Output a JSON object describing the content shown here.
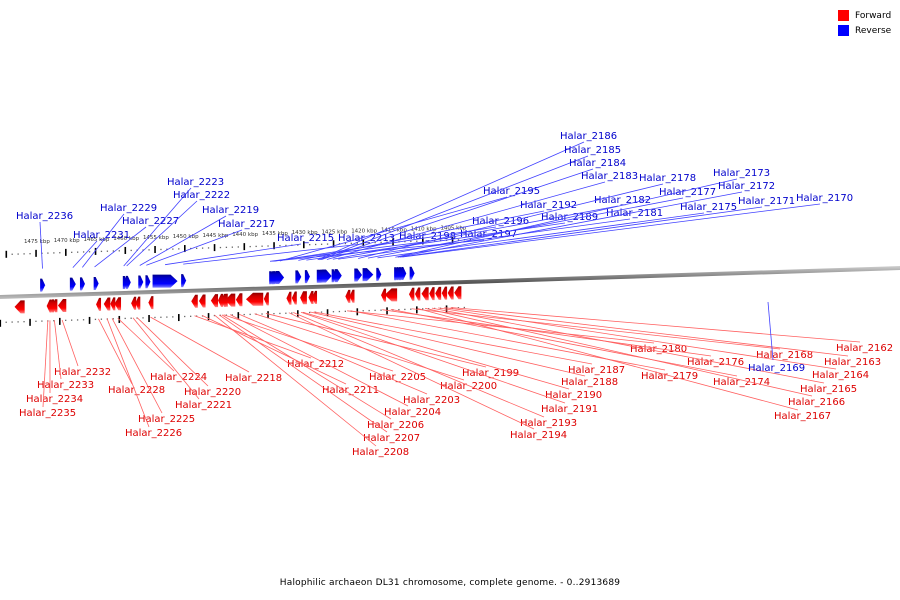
{
  "legend": {
    "items": [
      {
        "label": "Forward",
        "color": "#ff0000"
      },
      {
        "label": "Reverse",
        "color": "#0000ff"
      }
    ]
  },
  "caption": "Halophilic archaeon DL31 chromosome, complete genome. - 0..2913689",
  "chart_data": {
    "type": "genome-map",
    "sequence": "Halophilic archaeon DL31 chromosome, complete genome.",
    "range_bp": [
      0,
      2913689
    ],
    "axis_unit": "kbp",
    "axis_ticks_kbp": [
      1475,
      1470,
      1465,
      1460,
      1455,
      1450,
      1445,
      1440,
      1435,
      1430,
      1425,
      1420,
      1415,
      1410,
      1405
    ],
    "strand_colors": {
      "forward": "#ff0000",
      "reverse": "#0000ff"
    },
    "reverse_genes": [
      {
        "id": "Halar_2236",
        "start_kbp": 1474.3,
        "end_kbp": 1473.5
      },
      {
        "id": "Halar_2231",
        "start_kbp": 1469.3,
        "end_kbp": 1468.3
      },
      {
        "id": "Halar_2229",
        "start_kbp": 1467.6,
        "end_kbp": 1466.8
      },
      {
        "id": "Halar_2227",
        "start_kbp": 1465.3,
        "end_kbp": 1465.0
      },
      {
        "id": "Halar_2223",
        "start_kbp": 1460.4,
        "end_kbp": 1460.1
      },
      {
        "id": "Halar_2222",
        "start_kbp": 1459.9,
        "end_kbp": 1459.6
      },
      {
        "id": "Halar_2219",
        "start_kbp": 1457.8,
        "end_kbp": 1457.3
      },
      {
        "id": "Halar_2217",
        "start_kbp": 1456.6,
        "end_kbp": 1456.3
      },
      {
        "id": "Halar_2215",
        "start_kbp": 1455.4,
        "end_kbp": 1451.2
      },
      {
        "id": "Halar_2213",
        "start_kbp": 1450.6,
        "end_kbp": 1449.9
      },
      {
        "id": "Halar_2198",
        "start_kbp": 1435.8,
        "end_kbp": 1435.5
      },
      {
        "id": "Halar_2197",
        "start_kbp": 1435.4,
        "end_kbp": 1435.1
      },
      {
        "id": "Halar_2196",
        "start_kbp": 1435.1,
        "end_kbp": 1434.8
      },
      {
        "id": "Halar_2195",
        "start_kbp": 1434.7,
        "end_kbp": 1433.3
      },
      {
        "id": "Halar_2192",
        "start_kbp": 1431.4,
        "end_kbp": 1430.4
      },
      {
        "id": "Halar_2189",
        "start_kbp": 1429.8,
        "end_kbp": 1429.3
      },
      {
        "id": "Halar_2186",
        "start_kbp": 1427.8,
        "end_kbp": 1427.5
      },
      {
        "id": "Halar_2185",
        "start_kbp": 1427.5,
        "end_kbp": 1427.2
      },
      {
        "id": "Halar_2184",
        "start_kbp": 1427.2,
        "end_kbp": 1426.9
      },
      {
        "id": "Halar_2183",
        "start_kbp": 1426.9,
        "end_kbp": 1425.3
      },
      {
        "id": "Halar_2182",
        "start_kbp": 1425.3,
        "end_kbp": 1424.9
      },
      {
        "id": "Halar_2181",
        "start_kbp": 1424.8,
        "end_kbp": 1423.6
      },
      {
        "id": "Halar_2178",
        "start_kbp": 1421.5,
        "end_kbp": 1420.2
      },
      {
        "id": "Halar_2177",
        "start_kbp": 1420.1,
        "end_kbp": 1418.3
      },
      {
        "id": "Halar_2175",
        "start_kbp": 1417.8,
        "end_kbp": 1417.4
      },
      {
        "id": "Halar_2173",
        "start_kbp": 1414.8,
        "end_kbp": 1414.4
      },
      {
        "id": "Halar_2172",
        "start_kbp": 1414.4,
        "end_kbp": 1414.0
      },
      {
        "id": "Halar_2171",
        "start_kbp": 1414.0,
        "end_kbp": 1413.6
      },
      {
        "id": "Halar_2170",
        "start_kbp": 1413.6,
        "end_kbp": 1413.2
      },
      {
        "id": "Halar_2169",
        "start_kbp": 1412.2,
        "end_kbp": 1412.0
      }
    ],
    "forward_genes": [
      {
        "id": "Halar_2235",
        "start_kbp": 1473.2,
        "end_kbp": 1472.8
      },
      {
        "id": "Halar_2234",
        "start_kbp": 1472.8,
        "end_kbp": 1472.5
      },
      {
        "id": "Halar_2233",
        "start_kbp": 1472.4,
        "end_kbp": 1471.4
      },
      {
        "id": "Halar_2232",
        "start_kbp": 1471.3,
        "end_kbp": 1469.9
      },
      {
        "id": "Halar_2228",
        "start_kbp": 1464.9,
        "end_kbp": 1464.1
      },
      {
        "id": "Halar_2226",
        "start_kbp": 1463.6,
        "end_kbp": 1462.5
      },
      {
        "id": "Halar_2225",
        "start_kbp": 1462.5,
        "end_kbp": 1461.9
      },
      {
        "id": "Halar_2224",
        "start_kbp": 1461.8,
        "end_kbp": 1460.7
      },
      {
        "id": "Halar_2221",
        "start_kbp": 1459.0,
        "end_kbp": 1458.4
      },
      {
        "id": "Halar_2220",
        "start_kbp": 1458.3,
        "end_kbp": 1457.7
      },
      {
        "id": "Halar_2218",
        "start_kbp": 1456.1,
        "end_kbp": 1455.4
      },
      {
        "id": "Halar_2212",
        "start_kbp": 1448.9,
        "end_kbp": 1447.8
      },
      {
        "id": "Halar_2211",
        "start_kbp": 1447.6,
        "end_kbp": 1446.5
      },
      {
        "id": "Halar_2208",
        "start_kbp": 1445.6,
        "end_kbp": 1444.4
      },
      {
        "id": "Halar_2207",
        "start_kbp": 1444.4,
        "end_kbp": 1444.0
      },
      {
        "id": "Halar_2206",
        "start_kbp": 1443.9,
        "end_kbp": 1443.6
      },
      {
        "id": "Halar_2205",
        "start_kbp": 1443.6,
        "end_kbp": 1443.3
      },
      {
        "id": "Halar_2204",
        "start_kbp": 1443.2,
        "end_kbp": 1441.5
      },
      {
        "id": "Halar_2203",
        "start_kbp": 1441.4,
        "end_kbp": 1440.3
      },
      {
        "id": "Halar_2200",
        "start_kbp": 1439.7,
        "end_kbp": 1436.8
      },
      {
        "id": "Halar_2199",
        "start_kbp": 1436.7,
        "end_kbp": 1436.0
      },
      {
        "id": "Halar_2194",
        "start_kbp": 1432.9,
        "end_kbp": 1432.1
      },
      {
        "id": "Halar_2193",
        "start_kbp": 1432.0,
        "end_kbp": 1431.5
      },
      {
        "id": "Halar_2191",
        "start_kbp": 1430.6,
        "end_kbp": 1430.3
      },
      {
        "id": "Halar_2190",
        "start_kbp": 1430.3,
        "end_kbp": 1430.0
      },
      {
        "id": "Halar_2188",
        "start_kbp": 1429.2,
        "end_kbp": 1428.6
      },
      {
        "id": "Halar_2187",
        "start_kbp": 1428.6,
        "end_kbp": 1428.0
      },
      {
        "id": "Halar_2180",
        "start_kbp": 1423.0,
        "end_kbp": 1422.4
      },
      {
        "id": "Halar_2179",
        "start_kbp": 1422.3,
        "end_kbp": 1422.0
      },
      {
        "id": "Halar_2176",
        "start_kbp": 1417.0,
        "end_kbp": 1416.6
      },
      {
        "id": "Halar_2174",
        "start_kbp": 1416.4,
        "end_kbp": 1414.3
      },
      {
        "id": "Halar_2168",
        "start_kbp": 1412.3,
        "end_kbp": 1411.4
      },
      {
        "id": "Halar_2167",
        "start_kbp": 1411.3,
        "end_kbp": 1410.4
      },
      {
        "id": "Halar_2166",
        "start_kbp": 1410.2,
        "end_kbp": 1409.0
      },
      {
        "id": "Halar_2165",
        "start_kbp": 1408.9,
        "end_kbp": 1408.0
      },
      {
        "id": "Halar_2164",
        "start_kbp": 1407.9,
        "end_kbp": 1406.9
      },
      {
        "id": "Halar_2163",
        "start_kbp": 1406.8,
        "end_kbp": 1405.9
      },
      {
        "id": "Halar_2162",
        "start_kbp": 1405.8,
        "end_kbp": 1404.8
      },
      {
        "id": "(unlabeled)",
        "start_kbp": 1404.7,
        "end_kbp": 1403.5
      },
      {
        "id": "(unlabeled)",
        "start_kbp": 1478.6,
        "end_kbp": 1476.9
      }
    ]
  },
  "labels_reverse": [
    {
      "text": "Halar_2236",
      "anchor_kbp": 1473.9
    },
    {
      "text": "Halar_2231",
      "anchor_kbp": 1468.9
    },
    {
      "text": "Halar_2229",
      "anchor_kbp": 1467.2
    },
    {
      "text": "Halar_2227",
      "anchor_kbp": 1465.1
    },
    {
      "text": "Halar_2223",
      "anchor_kbp": 1460.25
    },
    {
      "text": "Halar_2222",
      "anchor_kbp": 1459.75
    },
    {
      "text": "Halar_2219",
      "anchor_kbp": 1457.55
    },
    {
      "text": "Halar_2217",
      "anchor_kbp": 1456.45
    },
    {
      "text": "Halar_2215",
      "anchor_kbp": 1453.3
    },
    {
      "text": "Halar_2213",
      "anchor_kbp": 1450.25
    },
    {
      "text": "Halar_2198",
      "anchor_kbp": 1435.65
    },
    {
      "text": "Halar_2197",
      "anchor_kbp": 1435.25
    },
    {
      "text": "Halar_2196",
      "anchor_kbp": 1434.95
    },
    {
      "text": "Halar_2195",
      "anchor_kbp": 1434.0
    },
    {
      "text": "Halar_2192",
      "anchor_kbp": 1430.9
    },
    {
      "text": "Halar_2189",
      "anchor_kbp": 1429.55
    },
    {
      "text": "Halar_2186",
      "anchor_kbp": 1427.65
    },
    {
      "text": "Halar_2185",
      "anchor_kbp": 1427.35
    },
    {
      "text": "Halar_2184",
      "anchor_kbp": 1427.05
    },
    {
      "text": "Halar_2183",
      "anchor_kbp": 1426.1
    },
    {
      "text": "Halar_2182",
      "anchor_kbp": 1425.1
    },
    {
      "text": "Halar_2181",
      "anchor_kbp": 1424.2
    },
    {
      "text": "Halar_2178",
      "anchor_kbp": 1420.85
    },
    {
      "text": "Halar_2177",
      "anchor_kbp": 1419.2
    },
    {
      "text": "Halar_2175",
      "anchor_kbp": 1417.6
    },
    {
      "text": "Halar_2173",
      "anchor_kbp": 1414.6
    },
    {
      "text": "Halar_2172",
      "anchor_kbp": 1414.2
    },
    {
      "text": "Halar_2171",
      "anchor_kbp": 1413.8
    },
    {
      "text": "Halar_2170",
      "anchor_kbp": 1413.4
    }
  ]
}
